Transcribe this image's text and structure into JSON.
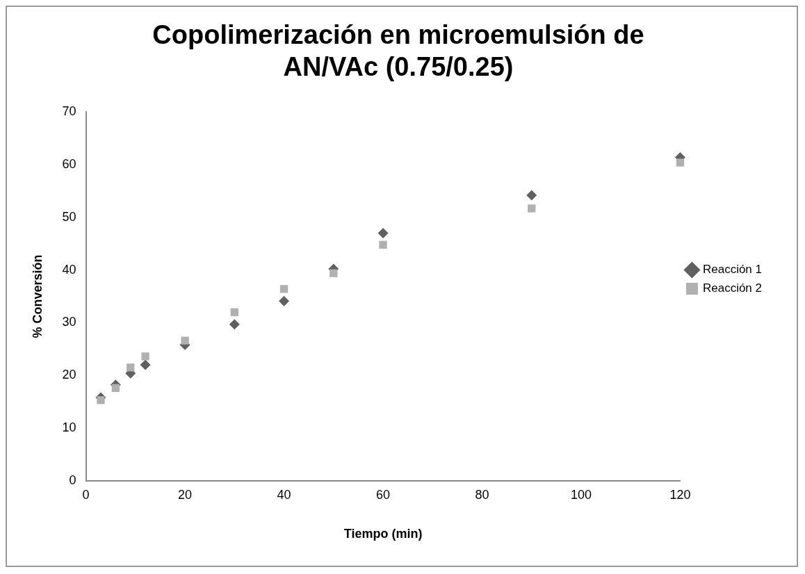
{
  "chart_data": {
    "type": "scatter",
    "title": "Copolimerización en microemulsión de AN/VAc (0.75/0.25)",
    "xlabel": "Tiempo (min)",
    "ylabel": "% Conversión",
    "x": [
      3,
      6,
      9,
      12,
      20,
      30,
      40,
      50,
      60,
      90,
      120
    ],
    "series": [
      {
        "name": "Reacción 1",
        "color": "#606060",
        "marker": "diamond",
        "values": [
          15.8,
          18.2,
          20.4,
          22,
          25.8,
          29.7,
          34.1,
          40.2,
          47,
          54.2,
          61.4
        ]
      },
      {
        "name": "Reacción 2",
        "color": "#b0b0b0",
        "marker": "square",
        "values": [
          15.3,
          17.6,
          21.5,
          23.6,
          26.6,
          32,
          36.4,
          39.4,
          44.8,
          51.7,
          60.4
        ]
      }
    ],
    "xlim": [
      0,
      120
    ],
    "xticks": [
      0,
      20,
      40,
      60,
      80,
      100,
      120
    ],
    "ylim": [
      0,
      70
    ],
    "yticks": [
      0,
      10,
      20,
      30,
      40,
      50,
      60,
      70
    ],
    "grid": false,
    "legend": "right"
  }
}
